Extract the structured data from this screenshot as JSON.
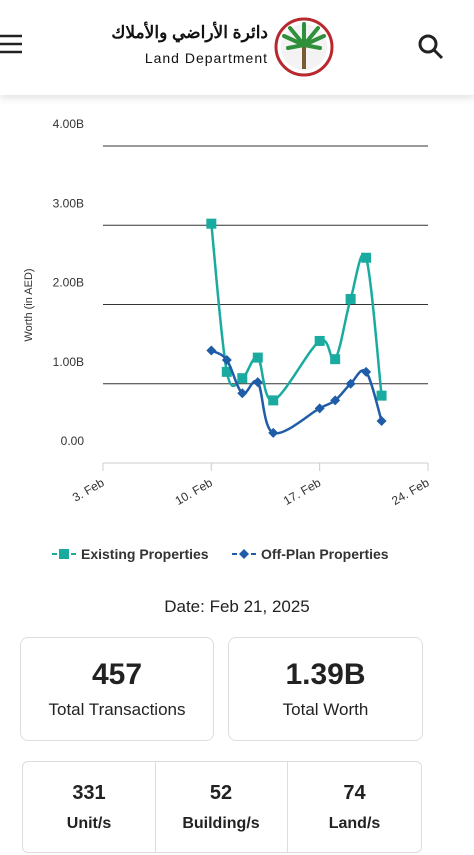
{
  "header": {
    "logo_arabic": "دائرة الأراضي والأملاك",
    "logo_english": "Land Department"
  },
  "chart_data": {
    "type": "line",
    "y_label": "Worth (in AED)",
    "x": [
      "02-10",
      "02-11",
      "02-12",
      "02-13",
      "02-14",
      "02-17",
      "02-18",
      "02-19",
      "02-20",
      "02-21"
    ],
    "xlim": [
      "02-03",
      "02-24"
    ],
    "xticks": [
      {
        "value": "02-03",
        "label": "3. Feb"
      },
      {
        "value": "02-10",
        "label": "10. Feb"
      },
      {
        "value": "02-17",
        "label": "17. Feb"
      },
      {
        "value": "02-24",
        "label": "24. Feb"
      }
    ],
    "ylim": [
      0,
      4
    ],
    "yticks": [
      {
        "value": 0,
        "label": "0.00"
      },
      {
        "value": 1,
        "label": "1.00B"
      },
      {
        "value": 2,
        "label": "2.00B"
      },
      {
        "value": 3,
        "label": "3.00B"
      },
      {
        "value": 4,
        "label": "4.00B"
      }
    ],
    "grid": true,
    "smooth": true,
    "series": [
      {
        "name": "Existing Properties",
        "color": "#1aaba0",
        "marker": "square",
        "values": [
          3.02,
          1.15,
          1.07,
          1.33,
          0.79,
          1.54,
          1.31,
          2.07,
          2.59,
          0.85
        ]
      },
      {
        "name": "Off-Plan Properties",
        "color": "#1f5da8",
        "marker": "diamond",
        "values": [
          1.42,
          1.3,
          0.88,
          1.02,
          0.38,
          0.69,
          0.79,
          1.0,
          1.15,
          0.53
        ]
      }
    ]
  },
  "date_label": "Date: Feb 21, 2025",
  "summary": {
    "cards": [
      {
        "value": "457",
        "label": "Total Transactions"
      },
      {
        "value": "1.39B",
        "label": "Total Worth"
      }
    ],
    "counts": [
      {
        "value": "331",
        "label": "Unit/s"
      },
      {
        "value": "52",
        "label": "Building/s"
      },
      {
        "value": "74",
        "label": "Land/s"
      }
    ]
  }
}
